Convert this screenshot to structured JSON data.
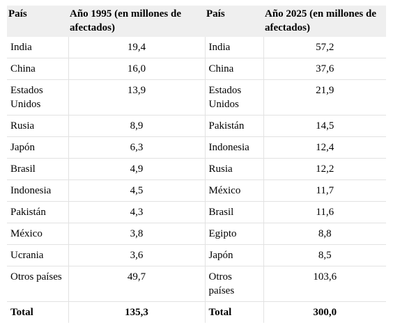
{
  "table": {
    "headers": [
      "País",
      "Año 1995 (en millones de afectados)",
      "País",
      "Año 2025 (en millones de afectados)"
    ],
    "rows": [
      [
        "India",
        "19,4",
        "India",
        "57,2"
      ],
      [
        "China",
        "16,0",
        "China",
        "37,6"
      ],
      [
        "Estados Unidos",
        "13,9",
        "Estados Unidos",
        "21,9"
      ],
      [
        "Rusia",
        "8,9",
        "Pakistán",
        "14,5"
      ],
      [
        "Japón",
        "6,3",
        "Indonesia",
        "12,4"
      ],
      [
        "Brasil",
        "4,9",
        "Rusia",
        "12,2"
      ],
      [
        "Indonesia",
        "4,5",
        "México",
        "11,7"
      ],
      [
        "Pakistán",
        "4,3",
        "Brasil",
        "11,6"
      ],
      [
        "México",
        "3,8",
        "Egipto",
        "8,8"
      ],
      [
        "Ucrania",
        "3,6",
        "Japón",
        "8,5"
      ],
      [
        "Otros países",
        "49,7",
        "Otros países",
        "103,6"
      ]
    ],
    "total": [
      "Total",
      "135,3",
      "Total",
      "300,0"
    ]
  }
}
